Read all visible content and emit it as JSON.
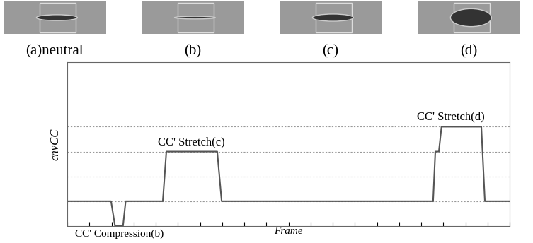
{
  "panels": [
    {
      "label": "(a)neutral"
    },
    {
      "label": "(b)"
    },
    {
      "label": "(c)"
    },
    {
      "label": "(d)"
    }
  ],
  "chart_data": {
    "type": "line",
    "color": "#555555",
    "x_label": "Frame",
    "y_label": "cnvCC",
    "x": [
      0,
      9.9,
      10.8,
      12.6,
      13.2,
      21.6,
      22.4,
      33.9,
      34.9,
      82.7,
      83.2,
      84.0,
      84.6,
      93.6,
      94.4,
      100
    ],
    "values": [
      1,
      1,
      0,
      0,
      1,
      1,
      3,
      3,
      1,
      1,
      3,
      3,
      4,
      4,
      1,
      1
    ],
    "xlim": [
      0,
      100
    ],
    "ylim": [
      0,
      6.6
    ],
    "xticks": [
      0,
      5,
      10,
      15,
      20,
      25,
      30,
      35,
      40,
      45,
      50,
      55,
      60,
      65,
      70,
      75,
      80,
      85,
      90,
      95,
      100
    ],
    "yticks": [
      1,
      2,
      3,
      4
    ],
    "grid": true,
    "tick_labels": false,
    "annotations": [
      {
        "text": "CC' Stretch(c)",
        "x": 28,
        "y": 3
      },
      {
        "text": "CC' Stretch(d)",
        "x": 88.5,
        "y": 4
      },
      {
        "text": "CC' Compression(b)",
        "x": 11.7,
        "y": 0
      }
    ]
  }
}
